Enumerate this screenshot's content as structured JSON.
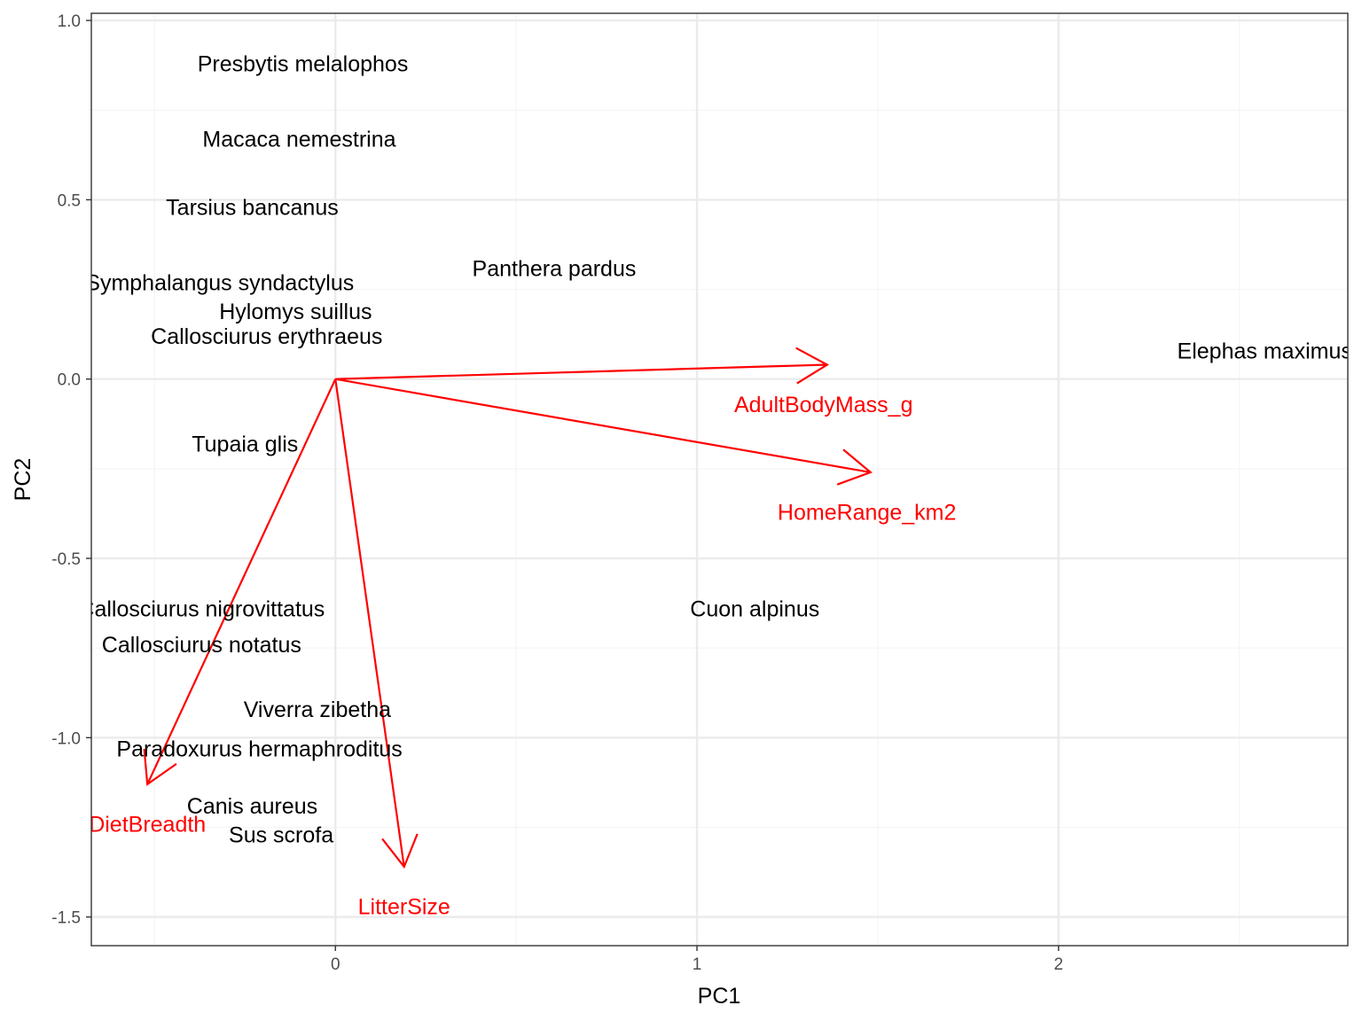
{
  "chart_data": {
    "type": "scatter",
    "subtype": "pca-biplot",
    "title": "",
    "xlabel": "PC1",
    "ylabel": "PC2",
    "xlim": [
      -0.675,
      2.8
    ],
    "ylim": [
      -1.58,
      1.02
    ],
    "x_ticks": [
      {
        "value": 0,
        "label": "0"
      },
      {
        "value": 1,
        "label": "1"
      },
      {
        "value": 2,
        "label": "2"
      }
    ],
    "y_ticks": [
      {
        "value": 1.0,
        "label": "1.0"
      },
      {
        "value": 0.5,
        "label": "0.5"
      },
      {
        "value": 0.0,
        "label": "0.0"
      },
      {
        "value": -0.5,
        "label": "-0.5"
      },
      {
        "value": -1.0,
        "label": "-1.0"
      },
      {
        "value": -1.5,
        "label": "-1.5"
      }
    ],
    "grid": true,
    "observations": [
      {
        "label": "Presbytis melalophos",
        "x": -0.09,
        "y": 0.88
      },
      {
        "label": "Macaca nemestrina",
        "x": -0.1,
        "y": 0.67
      },
      {
        "label": "Tarsius bancanus",
        "x": -0.23,
        "y": 0.48
      },
      {
        "label": "Panthera pardus",
        "x": 0.605,
        "y": 0.31
      },
      {
        "label": "Symphalangus syndactylus",
        "x": -0.32,
        "y": 0.27
      },
      {
        "label": "Hylomys suillus",
        "x": -0.11,
        "y": 0.19
      },
      {
        "label": "Callosciurus erythraeus",
        "x": -0.19,
        "y": 0.12
      },
      {
        "label": "Elephas maximus",
        "x": 2.57,
        "y": 0.08
      },
      {
        "label": "Tupaia glis",
        "x": -0.25,
        "y": -0.18
      },
      {
        "label": "Cuon alpinus",
        "x": 1.16,
        "y": -0.64
      },
      {
        "label": "Callosciurus nigrovittatus",
        "x": -0.37,
        "y": -0.64
      },
      {
        "label": "Callosciurus notatus",
        "x": -0.37,
        "y": -0.74
      },
      {
        "label": "Viverra zibetha",
        "x": -0.05,
        "y": -0.92
      },
      {
        "label": "Paradoxurus hermaphroditus",
        "x": -0.21,
        "y": -1.03
      },
      {
        "label": "Canis aureus",
        "x": -0.23,
        "y": -1.19
      },
      {
        "label": "Sus scrofa",
        "x": -0.15,
        "y": -1.27
      }
    ],
    "loadings": [
      {
        "label": "AdultBodyMass_g",
        "x": 1.36,
        "y": 0.04,
        "label_x": 1.35,
        "label_y": -0.07
      },
      {
        "label": "HomeRange_km2",
        "x": 1.48,
        "y": -0.26,
        "label_x": 1.47,
        "label_y": -0.37
      },
      {
        "label": "DietBreadth",
        "x": -0.52,
        "y": -1.13,
        "label_x": -0.52,
        "label_y": -1.24
      },
      {
        "label": "LitterSize",
        "x": 0.19,
        "y": -1.36,
        "label_x": 0.19,
        "label_y": -1.47
      }
    ],
    "colors": {
      "points": "#000000",
      "loadings": "#ff0000",
      "grid_major": "#ebebeb",
      "grid_minor": "#f5f5f5",
      "panel_border": "#333333"
    }
  }
}
